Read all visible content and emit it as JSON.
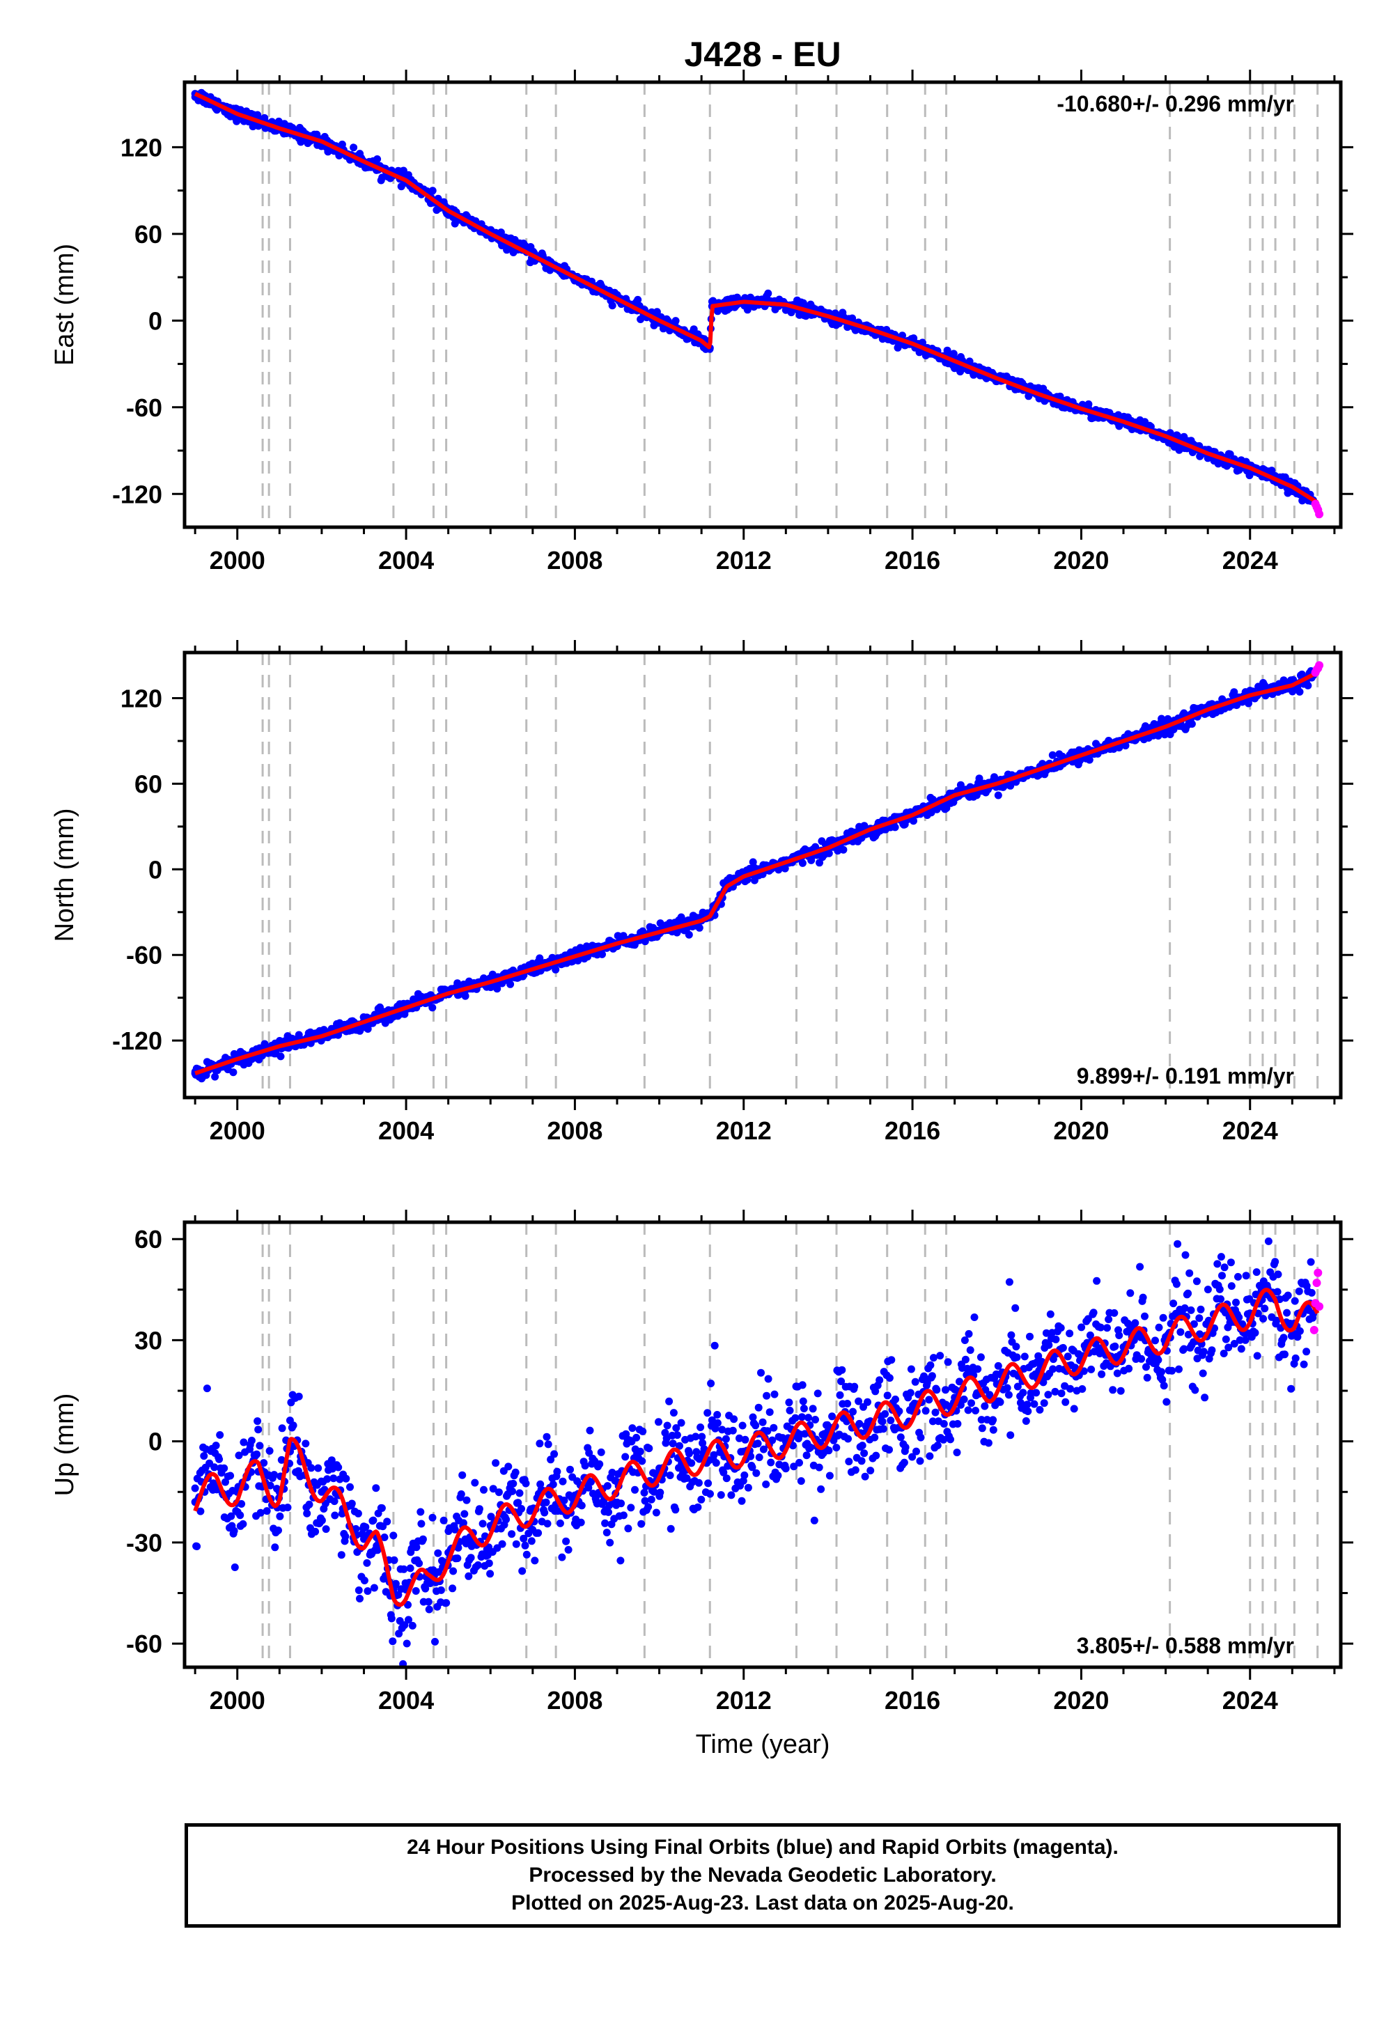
{
  "title": "J428 - EU",
  "xaxis": {
    "label": "Time (year)",
    "ticks": [
      2000,
      2004,
      2008,
      2012,
      2016,
      2020,
      2024
    ],
    "tick_labels": [
      "2000",
      "2004",
      "2008",
      "2012",
      "2016",
      "2020",
      "2024"
    ],
    "range": [
      1998.75,
      2026.15
    ]
  },
  "colors": {
    "final_orbits": "#0000ff",
    "rapid_orbits": "#ff00ff",
    "model": "#ff0000",
    "event_lines": "#bbbbbb",
    "axes": "#000000"
  },
  "chart_data": [
    {
      "type": "scatter",
      "panel": "east",
      "ylabel": "East (mm)",
      "ylim": [
        -143,
        165
      ],
      "yticks": [
        -120,
        -60,
        0,
        60,
        120
      ],
      "ytick_labels": [
        "-120",
        "-60",
        "0",
        "60",
        "120"
      ],
      "rate_label": "-10.680+/- 0.296 mm/yr",
      "event_lines": [
        2000.6,
        2000.75,
        2001.25,
        2003.7,
        2004.65,
        2004.95,
        2006.85,
        2007.55,
        2009.65,
        2011.2,
        2013.25,
        2014.2,
        2015.4,
        2016.3,
        2016.8,
        2022.1,
        2024.0,
        2024.3,
        2024.6,
        2025.05,
        2025.6
      ],
      "series": [
        {
          "name": "Final Orbits",
          "color": "#0000ff",
          "x": [
            1999.0,
            2000.0,
            2001.0,
            2002.0,
            2003.0,
            2004.0,
            2005.0,
            2006.0,
            2007.0,
            2008.0,
            2009.0,
            2010.0,
            2011.0,
            2011.2,
            2011.25,
            2012.0,
            2013.0,
            2014.0,
            2015.0,
            2016.0,
            2017.0,
            2018.0,
            2019.0,
            2020.0,
            2021.0,
            2022.0,
            2023.0,
            2024.0,
            2025.0,
            2025.5
          ],
          "y": [
            157,
            143,
            133,
            124,
            110,
            97,
            76,
            60,
            45,
            30,
            15,
            0,
            -14,
            -19,
            10,
            13,
            11,
            3,
            -6,
            -16,
            -28,
            -40,
            -51,
            -61,
            -70,
            -80,
            -92,
            -102,
            -115,
            -125
          ]
        },
        {
          "name": "Rapid Orbits",
          "color": "#ff00ff",
          "x": [
            2025.55,
            2025.58,
            2025.61,
            2025.64
          ],
          "y": [
            -127,
            -129,
            -131,
            -134
          ]
        }
      ],
      "model": {
        "name": "Model",
        "color": "#ff0000",
        "x": [
          1999.0,
          2000.0,
          2001.0,
          2002.0,
          2003.0,
          2004.0,
          2005.0,
          2006.0,
          2007.0,
          2008.0,
          2009.0,
          2010.0,
          2011.0,
          2011.2,
          2011.25,
          2012.0,
          2013.0,
          2014.0,
          2015.0,
          2016.0,
          2017.0,
          2018.0,
          2019.0,
          2020.0,
          2021.0,
          2022.0,
          2023.0,
          2024.0,
          2025.0,
          2025.6
        ],
        "y": [
          157,
          143,
          133,
          124,
          110,
          97,
          76,
          60,
          45,
          30,
          15,
          0,
          -14,
          -19,
          10,
          13,
          11,
          3,
          -6,
          -16,
          -28,
          -40,
          -51,
          -61,
          -70,
          -80,
          -92,
          -102,
          -115,
          -126
        ]
      },
      "scatter_sigma": 2.2
    },
    {
      "type": "scatter",
      "panel": "north",
      "ylabel": "North (mm)",
      "ylim": [
        -160,
        152
      ],
      "yticks": [
        -120,
        -60,
        0,
        60,
        120
      ],
      "ytick_labels": [
        "-120",
        "-60",
        "0",
        "60",
        "120"
      ],
      "rate_label": "9.899+/- 0.191 mm/yr",
      "event_lines": [
        2000.6,
        2000.75,
        2001.25,
        2003.7,
        2004.65,
        2004.95,
        2006.85,
        2007.55,
        2009.65,
        2011.2,
        2013.25,
        2014.2,
        2015.4,
        2016.3,
        2016.8,
        2022.1,
        2024.0,
        2024.3,
        2024.6,
        2025.05,
        2025.6
      ],
      "series": [
        {
          "name": "Final Orbits",
          "color": "#0000ff",
          "x": [
            1999.0,
            2000.0,
            2001.0,
            2002.0,
            2003.0,
            2004.0,
            2005.0,
            2006.0,
            2007.0,
            2008.0,
            2009.0,
            2010.0,
            2011.0,
            2011.2,
            2011.6,
            2012.0,
            2013.0,
            2014.0,
            2015.0,
            2016.0,
            2017.0,
            2018.0,
            2019.0,
            2020.0,
            2021.0,
            2022.0,
            2023.0,
            2024.0,
            2025.0,
            2025.5
          ],
          "y": [
            -143,
            -133,
            -124,
            -117,
            -107,
            -97,
            -87,
            -79,
            -70,
            -61,
            -52,
            -44,
            -36,
            -33,
            -12,
            -5,
            5,
            15,
            28,
            38,
            52,
            60,
            70,
            80,
            90,
            100,
            112,
            122,
            129,
            136
          ]
        },
        {
          "name": "Rapid Orbits",
          "color": "#ff00ff",
          "x": [
            2025.55,
            2025.58,
            2025.61,
            2025.64
          ],
          "y": [
            138,
            140,
            141,
            143
          ]
        }
      ],
      "model": {
        "name": "Model",
        "color": "#ff0000",
        "x": [
          1999.0,
          2000.0,
          2001.0,
          2002.0,
          2003.0,
          2004.0,
          2005.0,
          2006.0,
          2007.0,
          2008.0,
          2009.0,
          2010.0,
          2011.0,
          2011.2,
          2011.6,
          2012.0,
          2013.0,
          2014.0,
          2015.0,
          2016.0,
          2017.0,
          2018.0,
          2019.0,
          2020.0,
          2021.0,
          2022.0,
          2023.0,
          2024.0,
          2025.0,
          2025.6
        ],
        "y": [
          -143,
          -133,
          -124,
          -117,
          -107,
          -97,
          -87,
          -79,
          -70,
          -61,
          -52,
          -44,
          -36,
          -33,
          -12,
          -5,
          5,
          15,
          28,
          38,
          52,
          60,
          70,
          80,
          90,
          100,
          112,
          122,
          129,
          138
        ]
      },
      "scatter_sigma": 2.5
    },
    {
      "type": "scatter",
      "panel": "up",
      "ylabel": "Up (mm)",
      "ylim": [
        -67,
        65
      ],
      "yticks": [
        -60,
        -30,
        0,
        30,
        60
      ],
      "ytick_labels": [
        "-60",
        "-30",
        "0",
        "30",
        "60"
      ],
      "rate_label": "3.805+/- 0.588 mm/yr",
      "event_lines": [
        2000.6,
        2000.75,
        2001.25,
        2003.7,
        2004.65,
        2004.95,
        2006.85,
        2007.55,
        2009.65,
        2011.2,
        2013.25,
        2014.2,
        2015.4,
        2016.3,
        2016.8,
        2022.1,
        2024.0,
        2024.3,
        2024.6,
        2025.05,
        2025.6
      ],
      "series": [
        {
          "name": "Final Orbits",
          "color": "#0000ff",
          "x": [
            1999.0,
            1999.5,
            2000.0,
            2000.5,
            2001.0,
            2001.25,
            2001.5,
            2002.0,
            2002.5,
            2003.0,
            2003.3,
            2003.7,
            2004.0,
            2004.5,
            2005.0,
            2005.5,
            2006.0,
            2007.0,
            2008.0,
            2009.0,
            2010.0,
            2011.0,
            2012.0,
            2013.0,
            2014.0,
            2015.0,
            2016.0,
            2017.0,
            2018.0,
            2019.0,
            2020.0,
            2021.0,
            2022.0,
            2023.0,
            2024.0,
            2024.6,
            2025.05,
            2025.5
          ],
          "y": [
            -18,
            -13,
            -15,
            -9,
            -15,
            -3,
            -6,
            -15,
            -20,
            -29,
            -31,
            -44,
            -44,
            -42,
            -33,
            -29,
            -25,
            -20,
            -16,
            -12,
            -8,
            -5,
            -3,
            0,
            3,
            6,
            9,
            13,
            17,
            21,
            25,
            28,
            31,
            35,
            38,
            42,
            35,
            38
          ]
        },
        {
          "name": "Rapid Orbits",
          "color": "#ff00ff",
          "x": [
            2025.52,
            2025.55,
            2025.58,
            2025.61,
            2025.64
          ],
          "y": [
            33,
            41,
            47,
            50,
            40
          ]
        }
      ],
      "model": {
        "name": "Model",
        "color": "#ff0000",
        "x": [
          1999.0,
          1999.5,
          2000.0,
          2000.5,
          2000.9,
          2001.0,
          2001.25,
          2001.5,
          2002.0,
          2002.5,
          2003.0,
          2003.3,
          2003.7,
          2004.0,
          2004.5,
          2005.0,
          2005.5,
          2006.0,
          2007.0,
          2008.0,
          2009.0,
          2010.0,
          2011.0,
          2012.0,
          2013.0,
          2014.0,
          2015.0,
          2016.0,
          2017.0,
          2018.0,
          2019.0,
          2020.0,
          2021.0,
          2022.0,
          2023.0,
          2024.0,
          2024.6,
          2025.05,
          2025.6
        ],
        "y": [
          -18,
          -13,
          -15,
          -9,
          -15,
          -15,
          -3,
          -6,
          -15,
          -20,
          -29,
          -31,
          -44,
          -44,
          -42,
          -33,
          -29,
          -25,
          -20,
          -16,
          -12,
          -8,
          -5,
          -3,
          0,
          3,
          6,
          9,
          13,
          17,
          21,
          25,
          28,
          31,
          35,
          38,
          42,
          35,
          38
        ]
      },
      "seasonal_amplitude": 4.5,
      "scatter_sigma": 7.5
    }
  ],
  "footer": {
    "line1": "24 Hour Positions Using Final Orbits (blue) and Rapid Orbits (magenta).",
    "line2": "Processed by the Nevada Geodetic Laboratory.",
    "line3": "Plotted on 2025-Aug-23. Last data on 2025-Aug-20."
  }
}
